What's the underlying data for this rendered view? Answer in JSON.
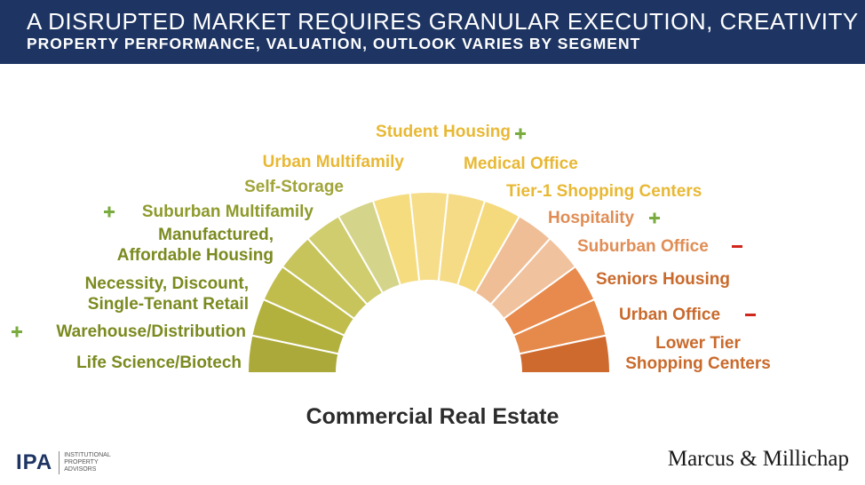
{
  "header": {
    "title": "A DISRUPTED MARKET REQUIRES GRANULAR EXECUTION, CREATIVITY",
    "subtitle": "PROPERTY PERFORMANCE, VALUATION, OUTLOOK VARIES BY SEGMENT"
  },
  "diagram": {
    "center_label": "Commercial Real Estate",
    "segments": [
      {
        "lines": [
          "Life Science/Biotech"
        ],
        "color": "#aaa93a",
        "text_color": "#7b8a1f",
        "sign": ""
      },
      {
        "lines": [
          "Warehouse/Distribution"
        ],
        "color": "#b3b13e",
        "text_color": "#7b8a1f",
        "sign": "+"
      },
      {
        "lines": [
          "Necessity, Discount,",
          "Single-Tenant Retail"
        ],
        "color": "#c0bd4d",
        "text_color": "#7b8a1f",
        "sign": ""
      },
      {
        "lines": [
          "Manufactured,",
          "Affordable Housing"
        ],
        "color": "#c7c45c",
        "text_color": "#7b8a1f",
        "sign": ""
      },
      {
        "lines": [
          "Suburban Multifamily"
        ],
        "color": "#cfcd6e",
        "text_color": "#8e9a2c",
        "sign": "+"
      },
      {
        "lines": [
          "Self-Storage"
        ],
        "color": "#d5d48b",
        "text_color": "#a0a439",
        "sign": ""
      },
      {
        "lines": [
          "Urban Multifamily"
        ],
        "color": "#f5dc7f",
        "text_color": "#e8b835",
        "sign": ""
      },
      {
        "lines": [
          "Student Housing"
        ],
        "color": "#f6dd8a",
        "text_color": "#e8b835",
        "sign": "+"
      },
      {
        "lines": [
          "Medical Office"
        ],
        "color": "#f6db86",
        "text_color": "#e8b835",
        "sign": ""
      },
      {
        "lines": [
          "Tier-1 Shopping Centers"
        ],
        "color": "#f5d97d",
        "text_color": "#e8b835",
        "sign": ""
      },
      {
        "lines": [
          "Hospitality"
        ],
        "color": "#efbe96",
        "text_color": "#e08d55",
        "sign": "+"
      },
      {
        "lines": [
          "Suburban Office"
        ],
        "color": "#f0c29e",
        "text_color": "#e08d55",
        "sign": "-"
      },
      {
        "lines": [
          "Seniors Housing"
        ],
        "color": "#e88a4d",
        "text_color": "#c96a2c",
        "sign": ""
      },
      {
        "lines": [
          "Urban Office"
        ],
        "color": "#e58a4b",
        "text_color": "#c96a2c",
        "sign": "-"
      },
      {
        "lines": [
          "Lower Tier",
          "Shopping Centers"
        ],
        "color": "#cf6a2e",
        "text_color": "#c96a2c",
        "sign": ""
      }
    ],
    "sign_colors": {
      "plus": "#7aab3e",
      "minus": "#d0261c"
    }
  },
  "footer": {
    "ipa_mark": "IPA",
    "ipa_text": [
      "INSTITUTIONAL",
      "PROPERTY",
      "ADVISORS"
    ],
    "mm_logo": "Marcus & Millichap"
  }
}
